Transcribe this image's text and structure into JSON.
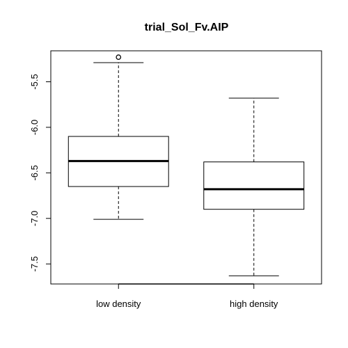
{
  "chart_data": {
    "type": "boxplot",
    "title": "trial_Sol_Fv.AIP",
    "xlabel": "",
    "ylabel": "",
    "categories": [
      "low density",
      "high density"
    ],
    "yticks": [
      -5.5,
      -6.0,
      -6.5,
      -7.0,
      -7.5
    ],
    "ytick_labels": [
      "-5.5",
      "-6.0",
      "-6.5",
      "-7.0",
      "-7.5"
    ],
    "ylim": [
      -7.72,
      -5.16
    ],
    "boxes": [
      {
        "name": "low density",
        "whisker_low": -7.01,
        "q1": -6.65,
        "median": -6.37,
        "q3": -6.1,
        "whisker_high": -5.29,
        "outliers": [
          -5.23
        ]
      },
      {
        "name": "high density",
        "whisker_low": -7.63,
        "q1": -6.9,
        "median": -6.68,
        "q3": -6.38,
        "whisker_high": -5.68,
        "outliers": []
      }
    ],
    "grid": false,
    "legend": "none"
  }
}
